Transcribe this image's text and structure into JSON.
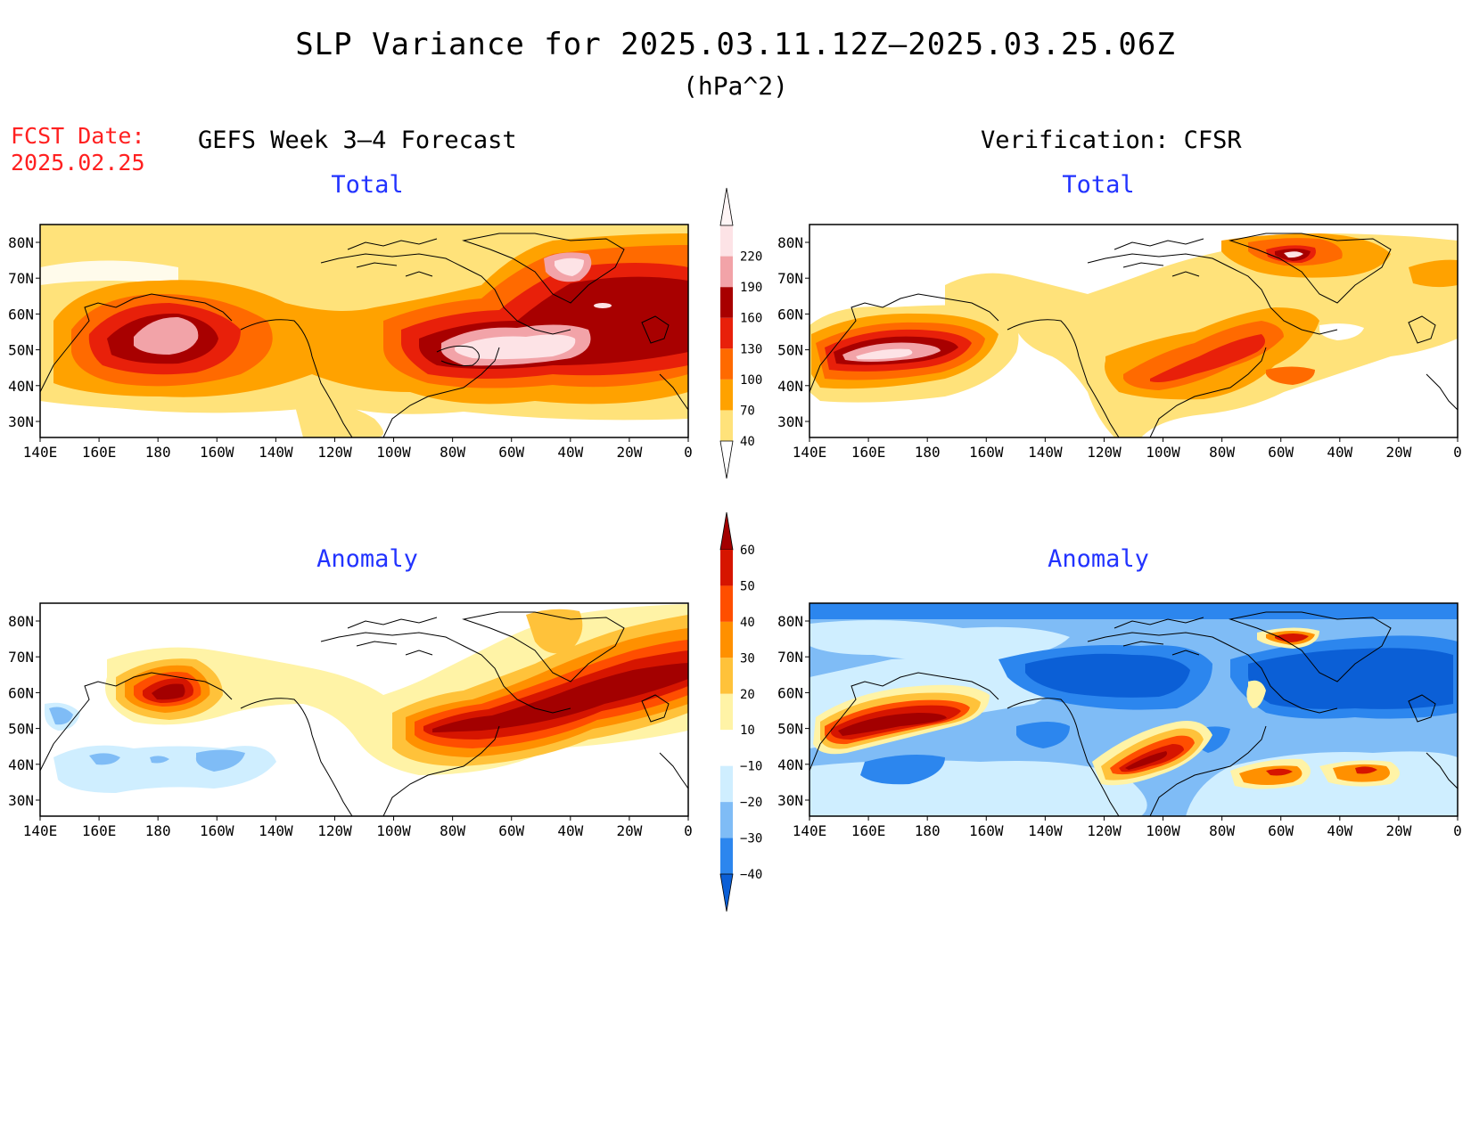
{
  "figure": {
    "title": "SLP Variance for 2025.03.11.12Z–2025.03.25.06Z",
    "units": "(hPa^2)",
    "fcst_label_line1": "FCST Date:",
    "fcst_label_line2": "2025.02.25",
    "left_header": "GEFS Week 3–4 Forecast",
    "right_header": "Verification: CFSR"
  },
  "panels": {
    "forecast_total": {
      "title": "Total"
    },
    "verification_total": {
      "title": "Total"
    },
    "forecast_anomaly": {
      "title": "Anomaly"
    },
    "verification_anomaly": {
      "title": "Anomaly"
    }
  },
  "axes": {
    "lon_labels": [
      "140E",
      "160E",
      "180",
      "160W",
      "140W",
      "120W",
      "100W",
      "80W",
      "60W",
      "40W",
      "20W",
      "0"
    ],
    "lat_labels": [
      "30N",
      "40N",
      "50N",
      "60N",
      "70N",
      "80N"
    ]
  },
  "colorbars": {
    "total": {
      "levels": [
        40,
        70,
        100,
        130,
        160,
        190,
        220
      ],
      "colors": [
        "#ffe27a",
        "#ffa200",
        "#ff6a00",
        "#e8200a",
        "#a80000",
        "#f2a3a8",
        "#fde3e6"
      ]
    },
    "anomaly": {
      "levels": [
        -40,
        -30,
        -20,
        -10,
        10,
        20,
        30,
        40,
        50,
        60
      ],
      "colors": [
        "#0b5fd6",
        "#2c86ee",
        "#7fbcf6",
        "#cfeeff",
        "#ffffff",
        "#fff3a6",
        "#ffc23a",
        "#ff9000",
        "#ff4e00",
        "#d61500",
        "#a30000"
      ]
    }
  },
  "colors": {
    "header_red": "#ff2020",
    "panel_title_blue": "#2233ff"
  }
}
